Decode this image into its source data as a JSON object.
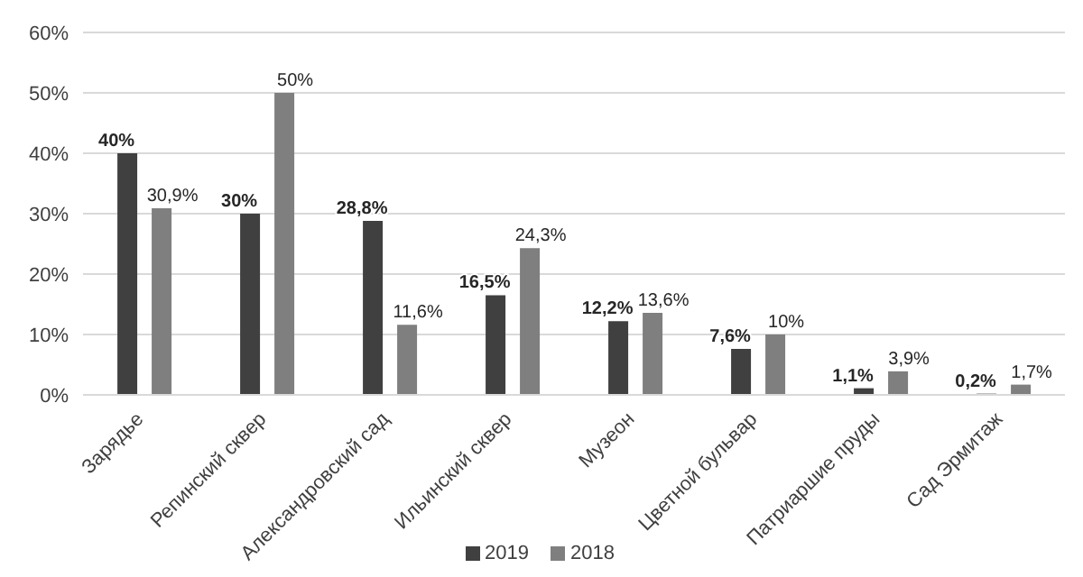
{
  "chart_data": {
    "type": "bar",
    "categories": [
      "Зарядье",
      "Репинский сквер",
      "Александровский сад",
      "Ильинский сквер",
      "Музеон",
      "Цветной бульвар",
      "Патриаршие пруды",
      "Сад Эрмитаж"
    ],
    "series": [
      {
        "name": "2019",
        "color": "#404040",
        "values": [
          40,
          30,
          28.8,
          16.5,
          12.2,
          7.6,
          1.1,
          0.2
        ],
        "value_labels": [
          "40%",
          "30%",
          "28,8%",
          "16,5%",
          "12,2%",
          "7,6%",
          "1,1%",
          "0,2%"
        ]
      },
      {
        "name": "2018",
        "color": "#7f7f7f",
        "values": [
          30.9,
          50,
          11.6,
          24.3,
          13.6,
          10,
          3.9,
          1.7
        ],
        "value_labels": [
          "30,9%",
          "50%",
          "11,6%",
          "24,3%",
          "13,6%",
          "10%",
          "3,9%",
          "1,7%"
        ]
      }
    ],
    "ylim": [
      0,
      60
    ],
    "yticks": [
      {
        "value": 0,
        "label": "0%"
      },
      {
        "value": 10,
        "label": "10%"
      },
      {
        "value": 20,
        "label": "20%"
      },
      {
        "value": 30,
        "label": "30%"
      },
      {
        "value": 40,
        "label": "40%"
      },
      {
        "value": 50,
        "label": "50%"
      },
      {
        "value": 60,
        "label": "60%"
      }
    ],
    "grid": "y",
    "legend": "bottom"
  }
}
